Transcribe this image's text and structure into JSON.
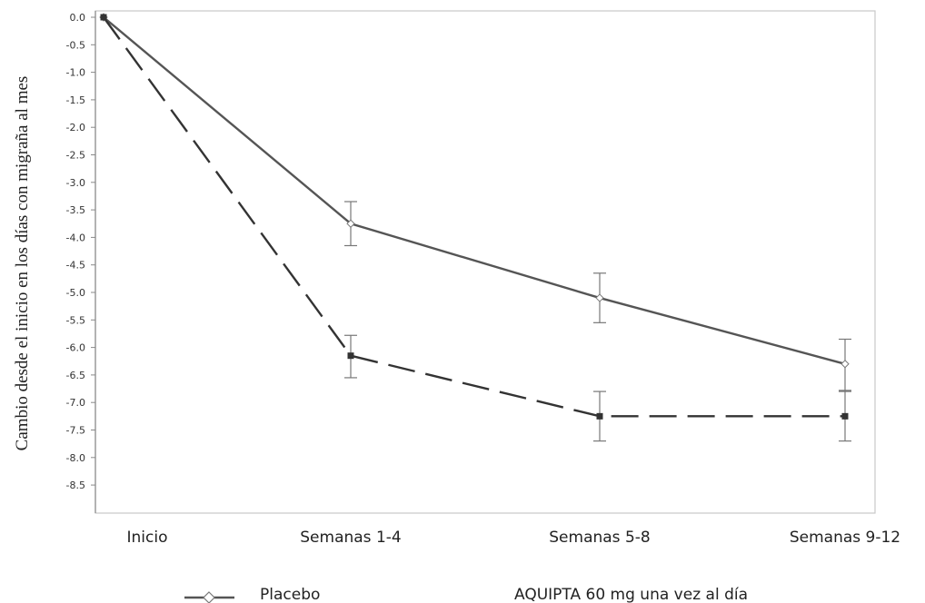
{
  "chart_data": {
    "type": "line",
    "ylabel": "Cambio desde el inicio en los días con migraña al mes",
    "xlabel": "",
    "categories": [
      "Inicio",
      "Semanas 1-4",
      "Semanas 5-8",
      "Semanas 9-12"
    ],
    "yticks": [
      "0.0",
      "-0.5",
      "-1.0",
      "-1.5",
      "-2.0",
      "-2.5",
      "-3.0",
      "-3.5",
      "-4.0",
      "-4.5",
      "-5.0",
      "-5.5",
      "-6.0",
      "-6.5",
      "-7.0",
      "-7.5",
      "-8.0",
      "-8.5"
    ],
    "ylim": [
      -9.0,
      0.15
    ],
    "grid": false,
    "legend_position": "bottom",
    "series": [
      {
        "name": "Placebo",
        "line_style": "solid",
        "marker": "open-diamond",
        "color": "#555555",
        "values": [
          0.0,
          -3.75,
          -5.1,
          -6.3
        ],
        "err_low": [
          0.0,
          -4.15,
          -5.55,
          -6.8
        ],
        "err_high": [
          0.0,
          -3.35,
          -4.65,
          -5.85
        ]
      },
      {
        "name": "AQUIPTA 60 mg una vez al día",
        "line_style": "dashed",
        "marker": "filled-square",
        "color": "#333333",
        "values": [
          0.0,
          -6.15,
          -7.25,
          -7.25
        ],
        "err_low": [
          0.0,
          -6.55,
          -7.7,
          -7.7
        ],
        "err_high": [
          0.0,
          -5.78,
          -6.8,
          -6.78
        ]
      }
    ]
  }
}
